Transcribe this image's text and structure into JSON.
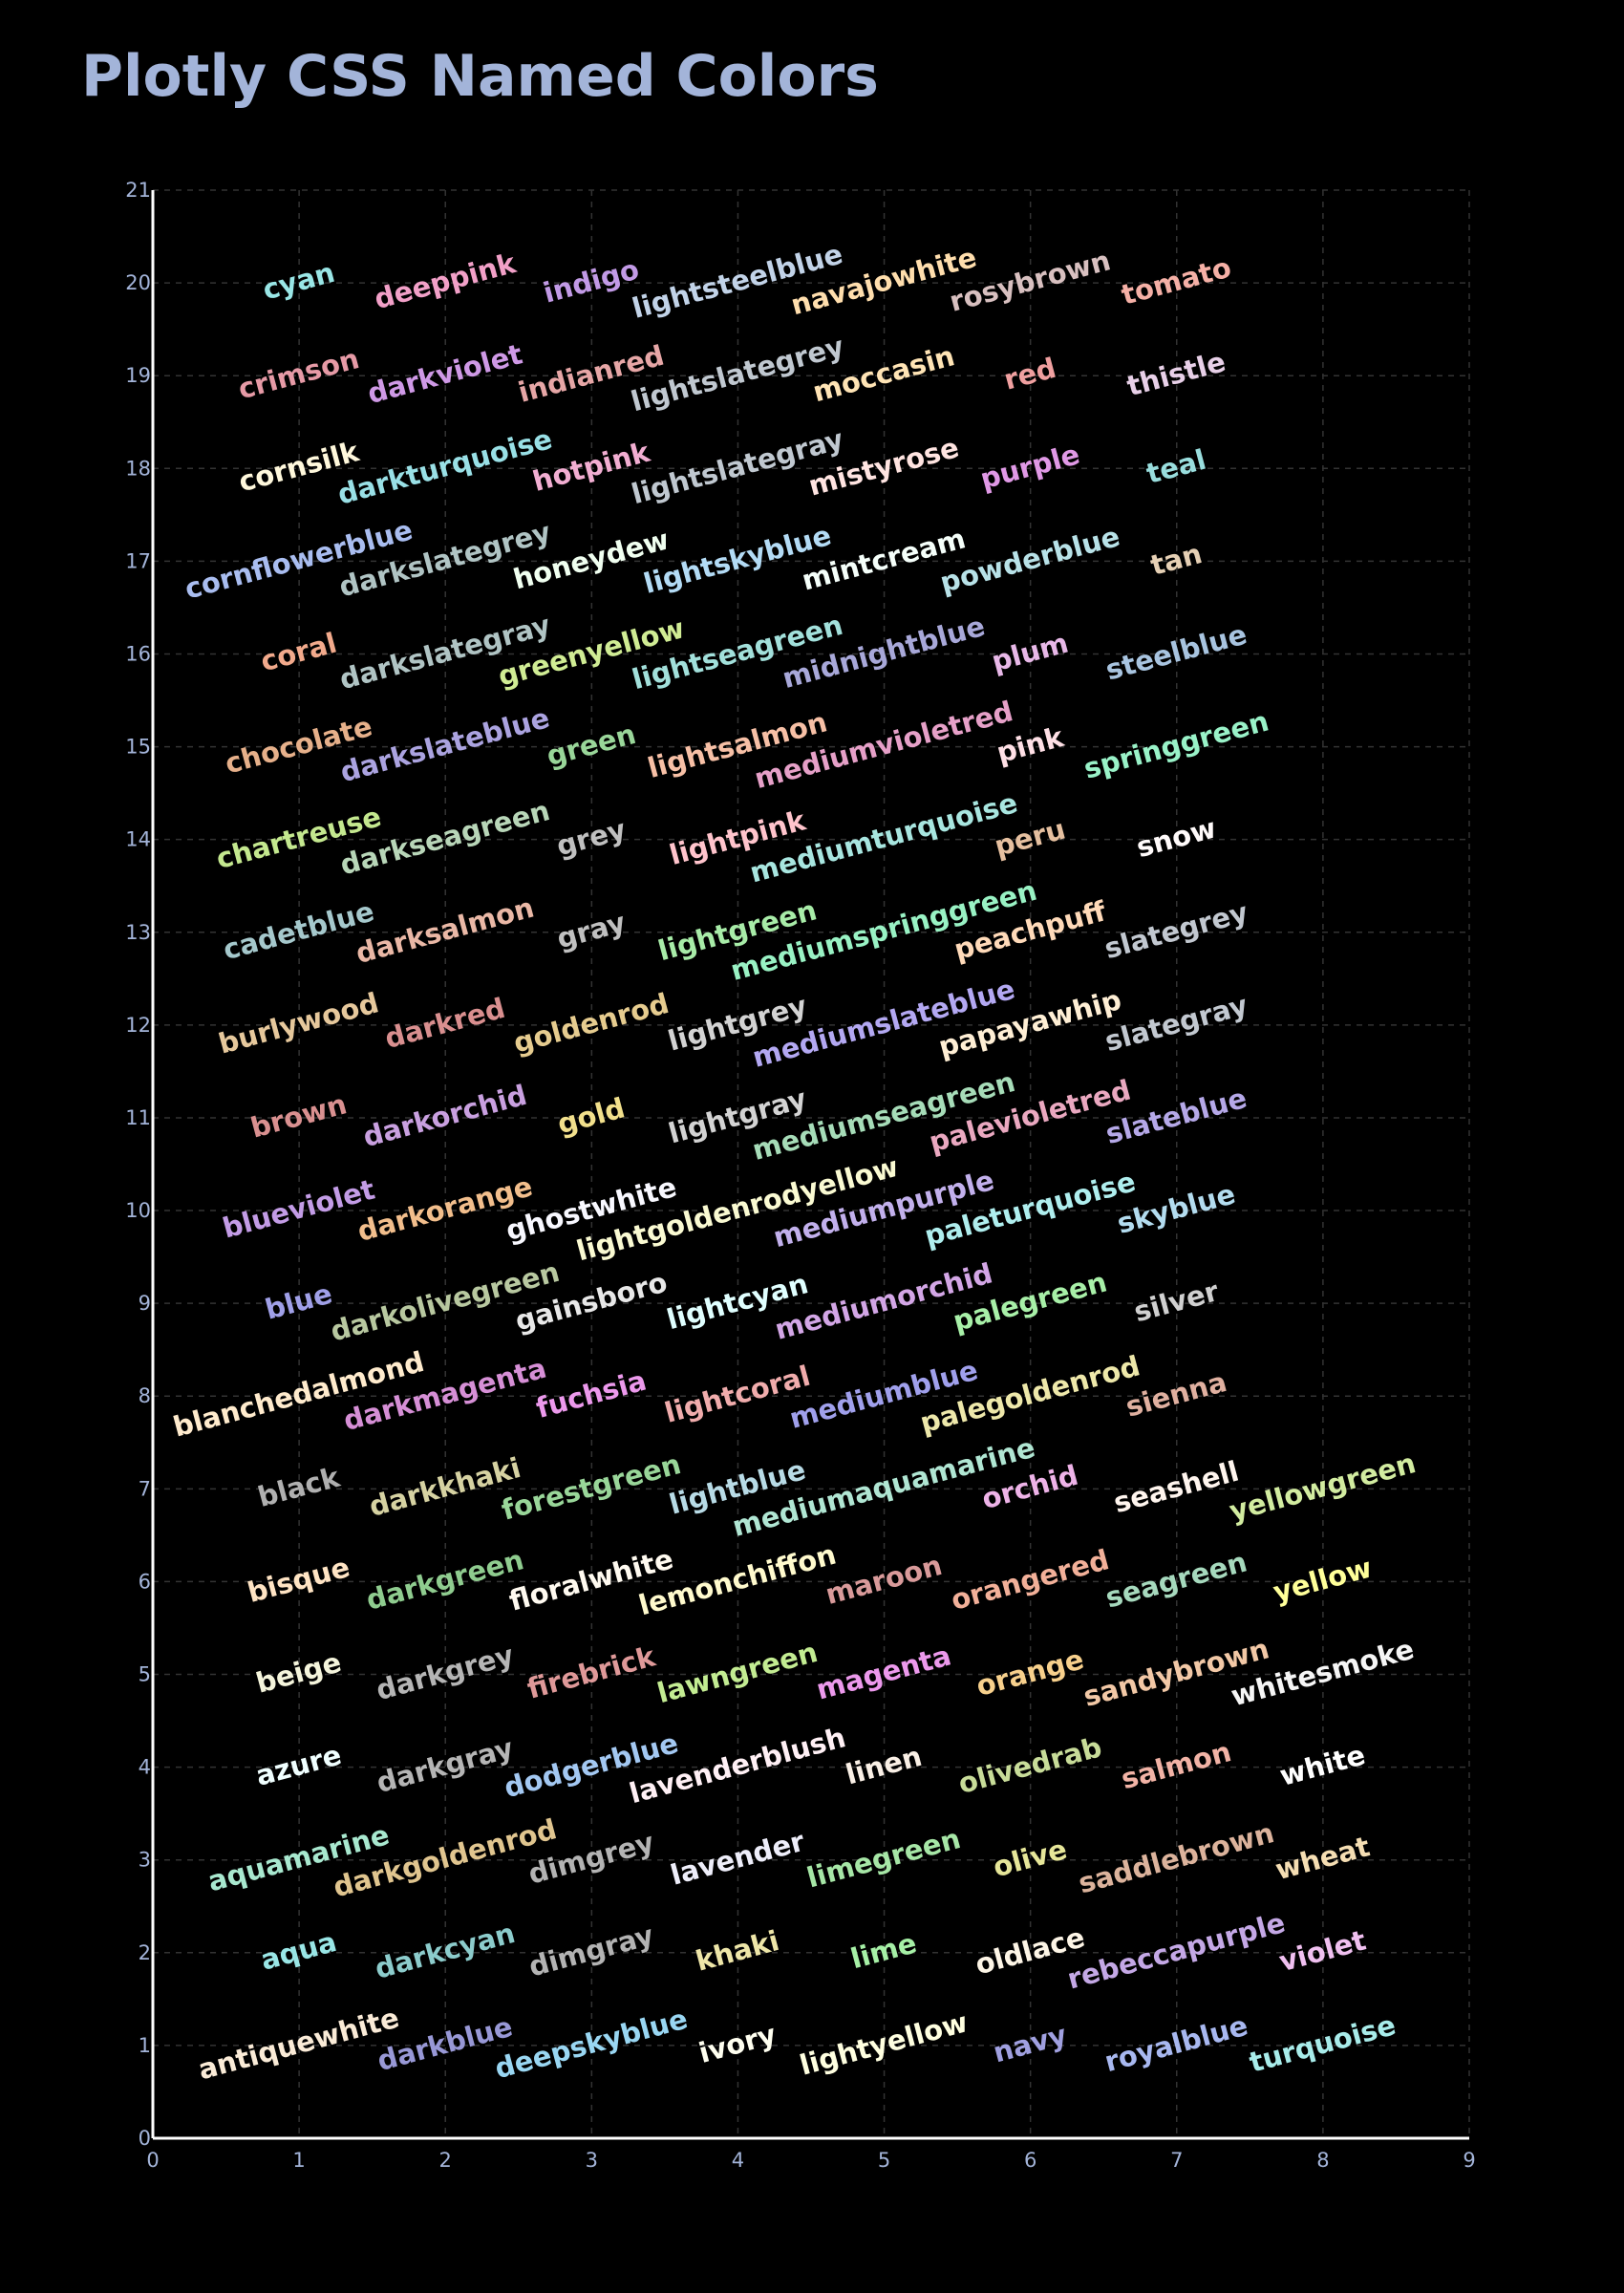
{
  "chart_data": {
    "type": "scatter",
    "title": "Plotly CSS Named Colors",
    "xlabel": "",
    "ylabel": "",
    "xlim": [
      0,
      9
    ],
    "ylim": [
      0,
      21
    ],
    "x_ticks": [
      0,
      1,
      2,
      3,
      4,
      5,
      6,
      7,
      8,
      9
    ],
    "y_ticks": [
      0,
      1,
      2,
      3,
      4,
      5,
      6,
      7,
      8,
      9,
      10,
      11,
      12,
      13,
      14,
      15,
      16,
      17,
      18,
      19,
      20,
      21
    ],
    "grid": true,
    "legend": "none",
    "label_rotation_deg": -15,
    "background_color": "#000000",
    "title_color": "#a3b4d9",
    "axis_color": "#ffffff",
    "tick_color": "#a3b4d9",
    "grid_color": "#333333",
    "columns": [
      {
        "x": 1,
        "labels": [
          "antiquewhite",
          "aqua",
          "aquamarine",
          "azure",
          "beige",
          "bisque",
          "black",
          "blanchedalmond",
          "blue",
          "blueviolet",
          "brown",
          "burlywood",
          "cadetblue",
          "chartreuse",
          "chocolate",
          "coral",
          "cornflowerblue",
          "cornsilk",
          "crimson",
          "cyan"
        ]
      },
      {
        "x": 2,
        "labels": [
          "darkblue",
          "darkcyan",
          "darkgoldenrod",
          "darkgray",
          "darkgrey",
          "darkgreen",
          "darkkhaki",
          "darkmagenta",
          "darkolivegreen",
          "darkorange",
          "darkorchid",
          "darkred",
          "darksalmon",
          "darkseagreen",
          "darkslateblue",
          "darkslategray",
          "darkslategrey",
          "darkturquoise",
          "darkviolet",
          "deeppink"
        ]
      },
      {
        "x": 3,
        "labels": [
          "deepskyblue",
          "dimgray",
          "dimgrey",
          "dodgerblue",
          "firebrick",
          "floralwhite",
          "forestgreen",
          "fuchsia",
          "gainsboro",
          "ghostwhite",
          "gold",
          "goldenrod",
          "gray",
          "grey",
          "green",
          "greenyellow",
          "honeydew",
          "hotpink",
          "indianred",
          "indigo"
        ]
      },
      {
        "x": 4,
        "labels": [
          "ivory",
          "khaki",
          "lavender",
          "lavenderblush",
          "lawngreen",
          "lemonchiffon",
          "lightblue",
          "lightcoral",
          "lightcyan",
          "lightgoldenrodyellow",
          "lightgray",
          "lightgrey",
          "lightgreen",
          "lightpink",
          "lightsalmon",
          "lightseagreen",
          "lightskyblue",
          "lightslategray",
          "lightslategrey",
          "lightsteelblue"
        ]
      },
      {
        "x": 5,
        "labels": [
          "lightyellow",
          "lime",
          "limegreen",
          "linen",
          "magenta",
          "maroon",
          "mediumaquamarine",
          "mediumblue",
          "mediumorchid",
          "mediumpurple",
          "mediumseagreen",
          "mediumslateblue",
          "mediumspringgreen",
          "mediumturquoise",
          "mediumvioletred",
          "midnightblue",
          "mintcream",
          "mistyrose",
          "moccasin",
          "navajowhite"
        ]
      },
      {
        "x": 6,
        "labels": [
          "navy",
          "oldlace",
          "olive",
          "olivedrab",
          "orange",
          "orangered",
          "orchid",
          "palegoldenrod",
          "palegreen",
          "paleturquoise",
          "palevioletred",
          "papayawhip",
          "peachpuff",
          "peru",
          "pink",
          "plum",
          "powderblue",
          "purple",
          "red",
          "rosybrown"
        ]
      },
      {
        "x": 7,
        "labels": [
          "royalblue",
          "rebeccapurple",
          "saddlebrown",
          "salmon",
          "sandybrown",
          "seagreen",
          "seashell",
          "sienna",
          "silver",
          "skyblue",
          "slateblue",
          "slategray",
          "slategrey",
          "snow",
          "springgreen",
          "steelblue",
          "tan",
          "teal",
          "thistle",
          "tomato"
        ]
      },
      {
        "x": 8,
        "labels": [
          "turquoise",
          "violet",
          "wheat",
          "white",
          "whitesmoke",
          "yellow",
          "yellowgreen"
        ]
      }
    ],
    "colors": {
      "aliceblue": "#f0f8ff",
      "antiquewhite": "#faebd7",
      "aqua": "#99e6e6",
      "aquamarine": "#a8e8cf",
      "azure": "#f0ffff",
      "beige": "#f5f5dc",
      "bisque": "#ffe4c4",
      "black": "#b0b0b0",
      "blanchedalmond": "#ffebcd",
      "blue": "#a0a0e8",
      "blueviolet": "#c39ce6",
      "brown": "#d99090",
      "burlywood": "#e6c89c",
      "cadetblue": "#a5c8cc",
      "chartreuse": "#c4e88f",
      "chocolate": "#e6b08a",
      "coral": "#f2aa8c",
      "cornflowerblue": "#a9bdf0",
      "cornsilk": "#fff8dc",
      "crimson": "#e69aa6",
      "cyan": "#99e6e6",
      "darkblue": "#9898d6",
      "darkcyan": "#8ccccc",
      "darkgoldenrod": "#e0c58f",
      "darkgray": "#b5b5b5",
      "darkgrey": "#b5b5b5",
      "darkgreen": "#8fcc8f",
      "darkkhaki": "#d6d2a2",
      "darkmagenta": "#d68fd6",
      "darkolivegreen": "#b8c8a0",
      "darkorange": "#f2be8c",
      "darkorchid": "#c9a0e0",
      "darkred": "#d98f8f",
      "darksalmon": "#eab8a6",
      "darkseagreen": "#b8d6b8",
      "darkslateblue": "#aba3e0",
      "darkslategray": "#b0c4c4",
      "darkslategrey": "#b0c4c4",
      "darkturquoise": "#99e0e6",
      "darkviolet": "#cf99e6",
      "deeppink": "#f2a0c8",
      "deepskyblue": "#99d6f2",
      "dimgray": "#b3b3b3",
      "dimgrey": "#b3b3b3",
      "dodgerblue": "#a3c8f2",
      "firebrick": "#df9999",
      "floralwhite": "#fffaf0",
      "forestgreen": "#99d699",
      "fuchsia": "#ec99ec",
      "gainsboro": "#e8e8e8",
      "ghostwhite": "#f8f8ff",
      "gold": "#f2e08c",
      "goldenrod": "#e6cc8f",
      "gray": "#c0c0c0",
      "grey": "#c0c0c0",
      "green": "#99d699",
      "greenyellow": "#d0ec94",
      "honeydew": "#f0fff0",
      "hotpink": "#f2aed2",
      "indianred": "#e6a6a6",
      "indigo": "#c29ae6",
      "ivory": "#fffff0",
      "khaki": "#eee6a8",
      "lavender": "#eeeefa",
      "lavenderblush": "#fff0f5",
      "lawngreen": "#c3ec92",
      "lemonchiffon": "#fffacd",
      "lightblue": "#b8dbe6",
      "lightcoral": "#f0acac",
      "lightcyan": "#e0ffff",
      "lightgoldenrodyellow": "#fafad2",
      "lightgray": "#d3d3d3",
      "lightgrey": "#d3d3d3",
      "lightgreen": "#a8eca8",
      "lightpink": "#ffc4cc",
      "lightsalmon": "#f7c0a6",
      "lightseagreen": "#a2e0db",
      "lightskyblue": "#b3dbf5",
      "lightslategray": "#c0c8d0",
      "lightslategrey": "#c0c8d0",
      "lightsteelblue": "#c2d3e8",
      "lightyellow": "#ffffe0",
      "lime": "#a6f0a6",
      "limegreen": "#a6e6a6",
      "linen": "#faf0e6",
      "magenta": "#ec99ec",
      "maroon": "#d99a9a",
      "mediumaquamarine": "#b0e6d3",
      "mediumblue": "#a0a0ec",
      "mediumorchid": "#d3a6e6",
      "mediumpurple": "#c2b0ec",
      "mediumseagreen": "#a6dcb8",
      "mediumslateblue": "#b3a8f2",
      "mediumspringgreen": "#99f2c4",
      "mediumturquoise": "#a8e6e0",
      "mediumvioletred": "#e6a0c8",
      "midnightblue": "#a8a8d9",
      "mintcream": "#f5fffa",
      "mistyrose": "#ffe4e1",
      "moccasin": "#ffe4b5",
      "navajowhite": "#ffdead",
      "navy": "#a0a0e0",
      "oldlace": "#fdf5e6",
      "olive": "#e6e699",
      "olivedrab": "#c8dc99",
      "orange": "#f7d08c",
      "orangered": "#f2b099",
      "orchid": "#eeb3e8",
      "palegoldenrod": "#eee8aa",
      "palegreen": "#a8f0a8",
      "paleturquoise": "#afeeee",
      "palevioletred": "#eaa8c0",
      "papayawhip": "#ffefd5",
      "peachpuff": "#ffdab9",
      "peru": "#e6c0a0",
      "pink": "#ffe0e6",
      "plum": "#e8b8e8",
      "powderblue": "#b8e2e8",
      "purple": "#e099e6",
      "red": "#f0a0a0",
      "rosybrown": "#d8c0c0",
      "royalblue": "#a8b8f0",
      "rebeccapurple": "#c4a8e6",
      "saddlebrown": "#dcb39c",
      "salmon": "#f2b3a6",
      "sandybrown": "#f2c8a6",
      "seagreen": "#a6d9bd",
      "seashell": "#fff5ee",
      "sienna": "#e0b0a0",
      "silver": "#d0d0d0",
      "skyblue": "#b3dcef",
      "slateblue": "#b5a8e8",
      "slategray": "#c2c8d0",
      "slategrey": "#c2c8d0",
      "snow": "#fffafa",
      "springgreen": "#99f2c8",
      "steelblue": "#a8c4e0",
      "tan": "#e6d0b5",
      "teal": "#99dede",
      "thistle": "#e8d0e8",
      "tomato": "#f5b0a6",
      "turquoise": "#a8ecea",
      "violet": "#f0c0f0",
      "wheat": "#f5deb3",
      "white": "#ffffff",
      "whitesmoke": "#f5f5f5",
      "yellow": "#ffff99",
      "yellowgreen": "#d2eca0"
    }
  }
}
